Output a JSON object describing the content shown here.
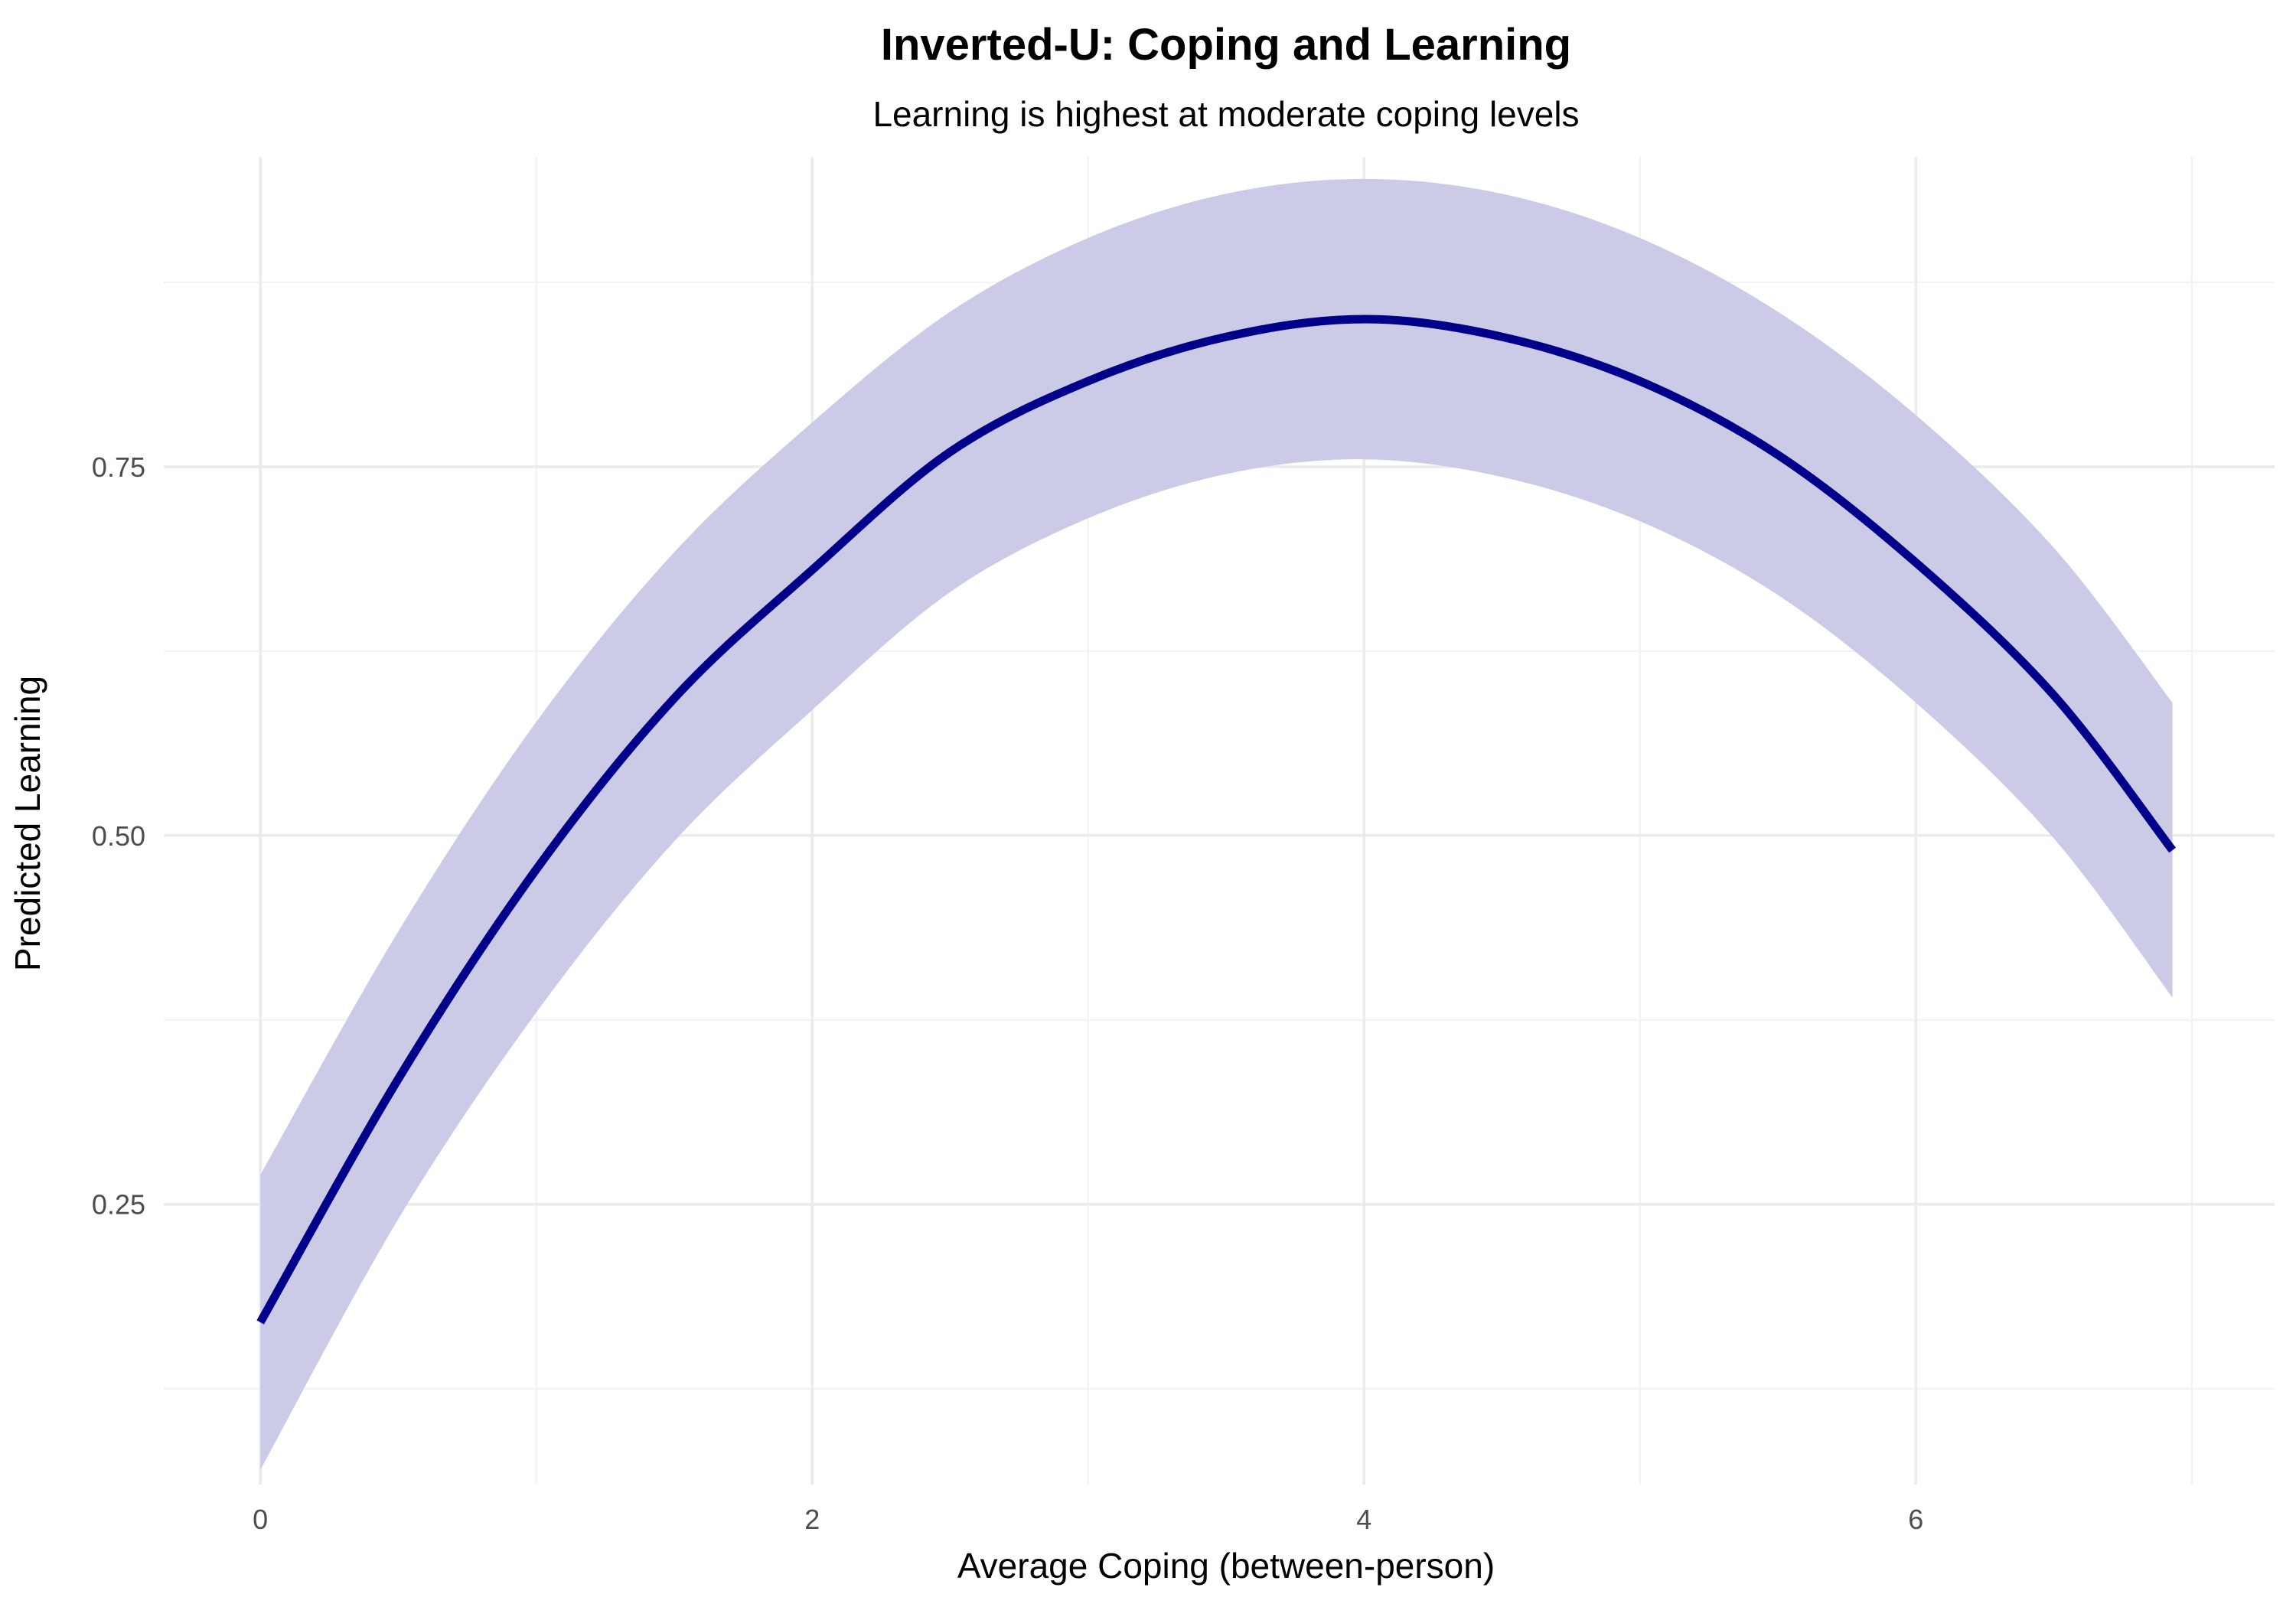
{
  "chart_data": {
    "type": "line",
    "title": "Inverted-U: Coping and Learning",
    "subtitle": "Learning is highest at moderate coping levels",
    "xlabel": "Average Coping (between-person)",
    "ylabel": "Predicted Learning",
    "xlim": [
      -0.35,
      7.3
    ],
    "ylim": [
      0.06,
      0.96
    ],
    "x_ticks": [
      0,
      2,
      4,
      6
    ],
    "x_tick_labels": [
      "0",
      "2",
      "4",
      "6"
    ],
    "y_ticks": [
      0.25,
      0.5,
      0.75
    ],
    "y_tick_labels": [
      "0.25",
      "0.50",
      "0.75"
    ],
    "x_minor": [
      1,
      3,
      5,
      7
    ],
    "y_minor": [
      0.125,
      0.375,
      0.625,
      0.875
    ],
    "grid": true,
    "legend": "none",
    "series": [
      {
        "x": [
          0,
          0.5,
          1,
          1.5,
          2,
          2.5,
          3,
          3.5,
          4,
          4.5,
          5,
          5.5,
          6,
          6.5,
          6.93
        ],
        "y": [
          0.17,
          0.335,
          0.477,
          0.593,
          0.68,
          0.76,
          0.808,
          0.838,
          0.85,
          0.838,
          0.808,
          0.758,
          0.685,
          0.595,
          0.49
        ],
        "lower": [
          0.07,
          0.24,
          0.38,
          0.496,
          0.585,
          0.665,
          0.715,
          0.745,
          0.755,
          0.743,
          0.713,
          0.663,
          0.59,
          0.498,
          0.39
        ],
        "upper": [
          0.27,
          0.435,
          0.577,
          0.692,
          0.78,
          0.855,
          0.905,
          0.935,
          0.945,
          0.935,
          0.905,
          0.855,
          0.785,
          0.695,
          0.59
        ]
      }
    ],
    "colors": {
      "line": "#00008b",
      "ribbon": "#cbcbe7",
      "grid_major": "#ebebeb",
      "grid_minor": "#f2f2f2"
    }
  }
}
